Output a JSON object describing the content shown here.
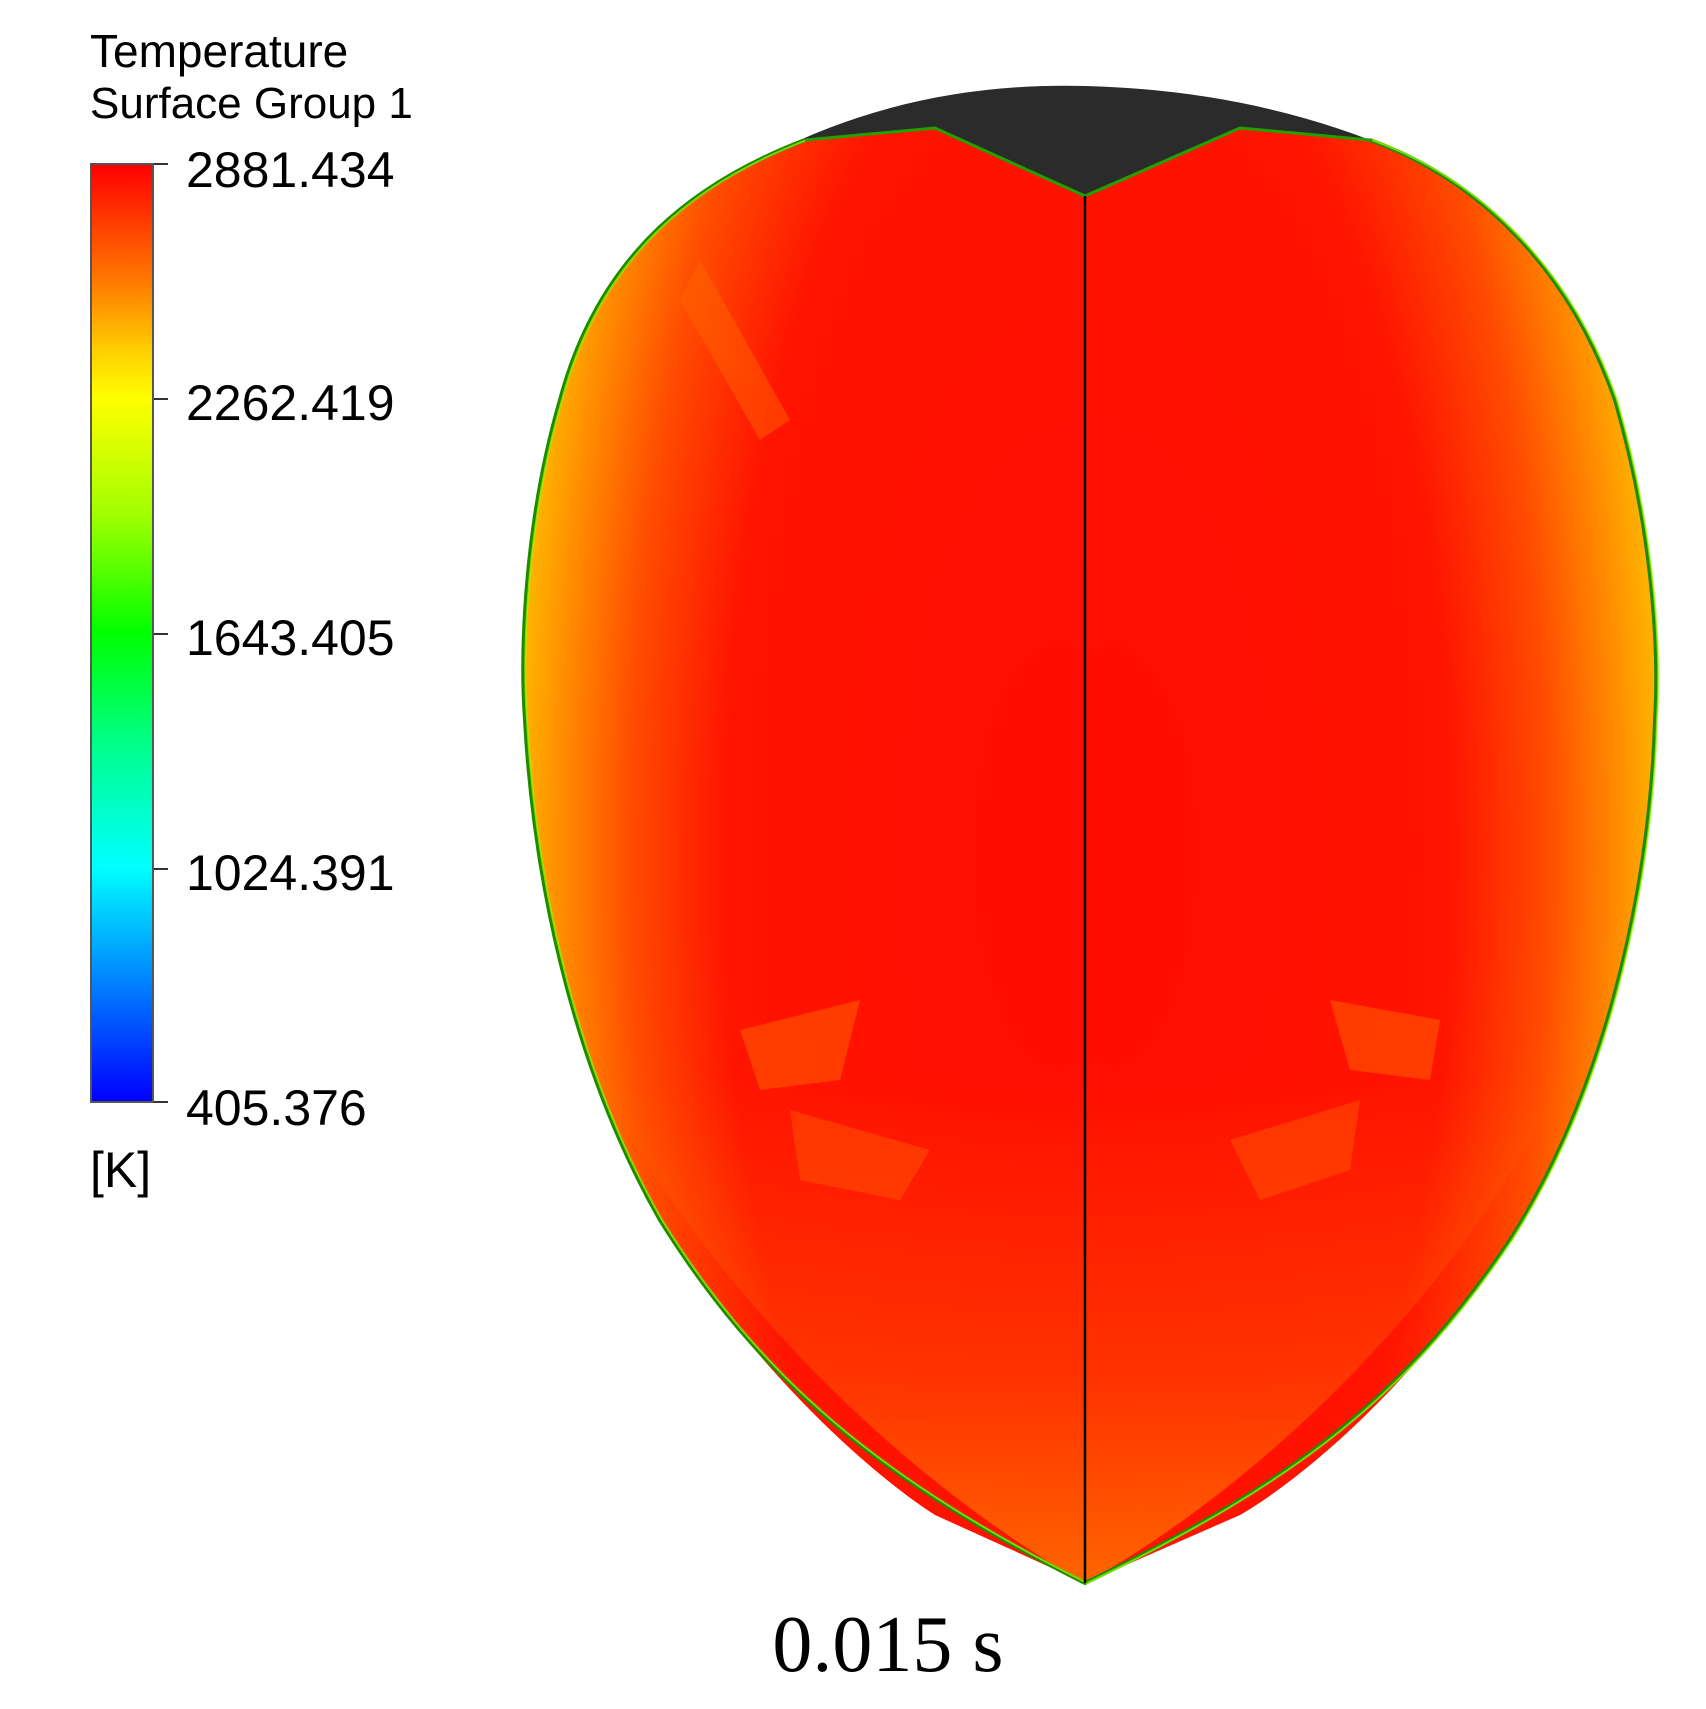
{
  "legend": {
    "title": "Temperature",
    "subtitle": "Surface Group 1",
    "unit": "[K]",
    "max": 2881.434,
    "min": 405.376,
    "ticks": [
      "2881.434",
      "2262.419",
      "1643.405",
      "1024.391",
      "405.376"
    ],
    "colormap": [
      "#0000ff",
      "#00ffff",
      "#00ff00",
      "#ffff00",
      "#ff0000"
    ]
  },
  "caption": "0.015 s"
}
